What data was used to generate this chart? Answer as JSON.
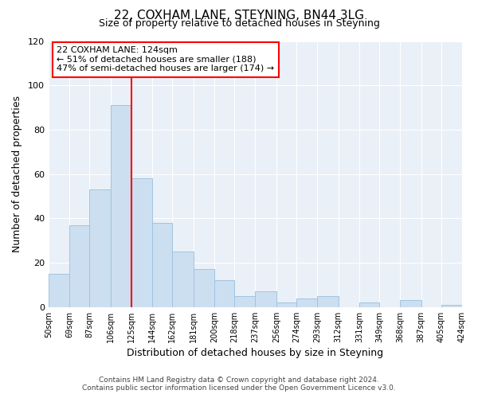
{
  "title": "22, COXHAM LANE, STEYNING, BN44 3LG",
  "subtitle": "Size of property relative to detached houses in Steyning",
  "xlabel": "Distribution of detached houses by size in Steyning",
  "ylabel": "Number of detached properties",
  "bar_values": [
    15,
    37,
    53,
    91,
    58,
    38,
    25,
    17,
    12,
    5,
    7,
    2,
    4,
    5,
    0,
    2,
    0,
    3,
    0,
    1
  ],
  "bin_edges": [
    50,
    69,
    87,
    106,
    125,
    144,
    162,
    181,
    200,
    218,
    237,
    256,
    274,
    293,
    312,
    331,
    349,
    368,
    387,
    405,
    424
  ],
  "xtick_labels": [
    "50sqm",
    "69sqm",
    "87sqm",
    "106sqm",
    "125sqm",
    "144sqm",
    "162sqm",
    "181sqm",
    "200sqm",
    "218sqm",
    "237sqm",
    "256sqm",
    "274sqm",
    "293sqm",
    "312sqm",
    "331sqm",
    "349sqm",
    "368sqm",
    "387sqm",
    "405sqm",
    "424sqm"
  ],
  "ylim": [
    0,
    120
  ],
  "yticks": [
    0,
    20,
    40,
    60,
    80,
    100,
    120
  ],
  "bar_color": "#ccdff0",
  "bar_edge_color": "#a0c4e0",
  "red_line_x": 125,
  "annotation_title": "22 COXHAM LANE: 124sqm",
  "annotation_line1": "← 51% of detached houses are smaller (188)",
  "annotation_line2": "47% of semi-detached houses are larger (174) →",
  "background_color": "#eaf0f7",
  "footer_line1": "Contains HM Land Registry data © Crown copyright and database right 2024.",
  "footer_line2": "Contains public sector information licensed under the Open Government Licence v3.0."
}
